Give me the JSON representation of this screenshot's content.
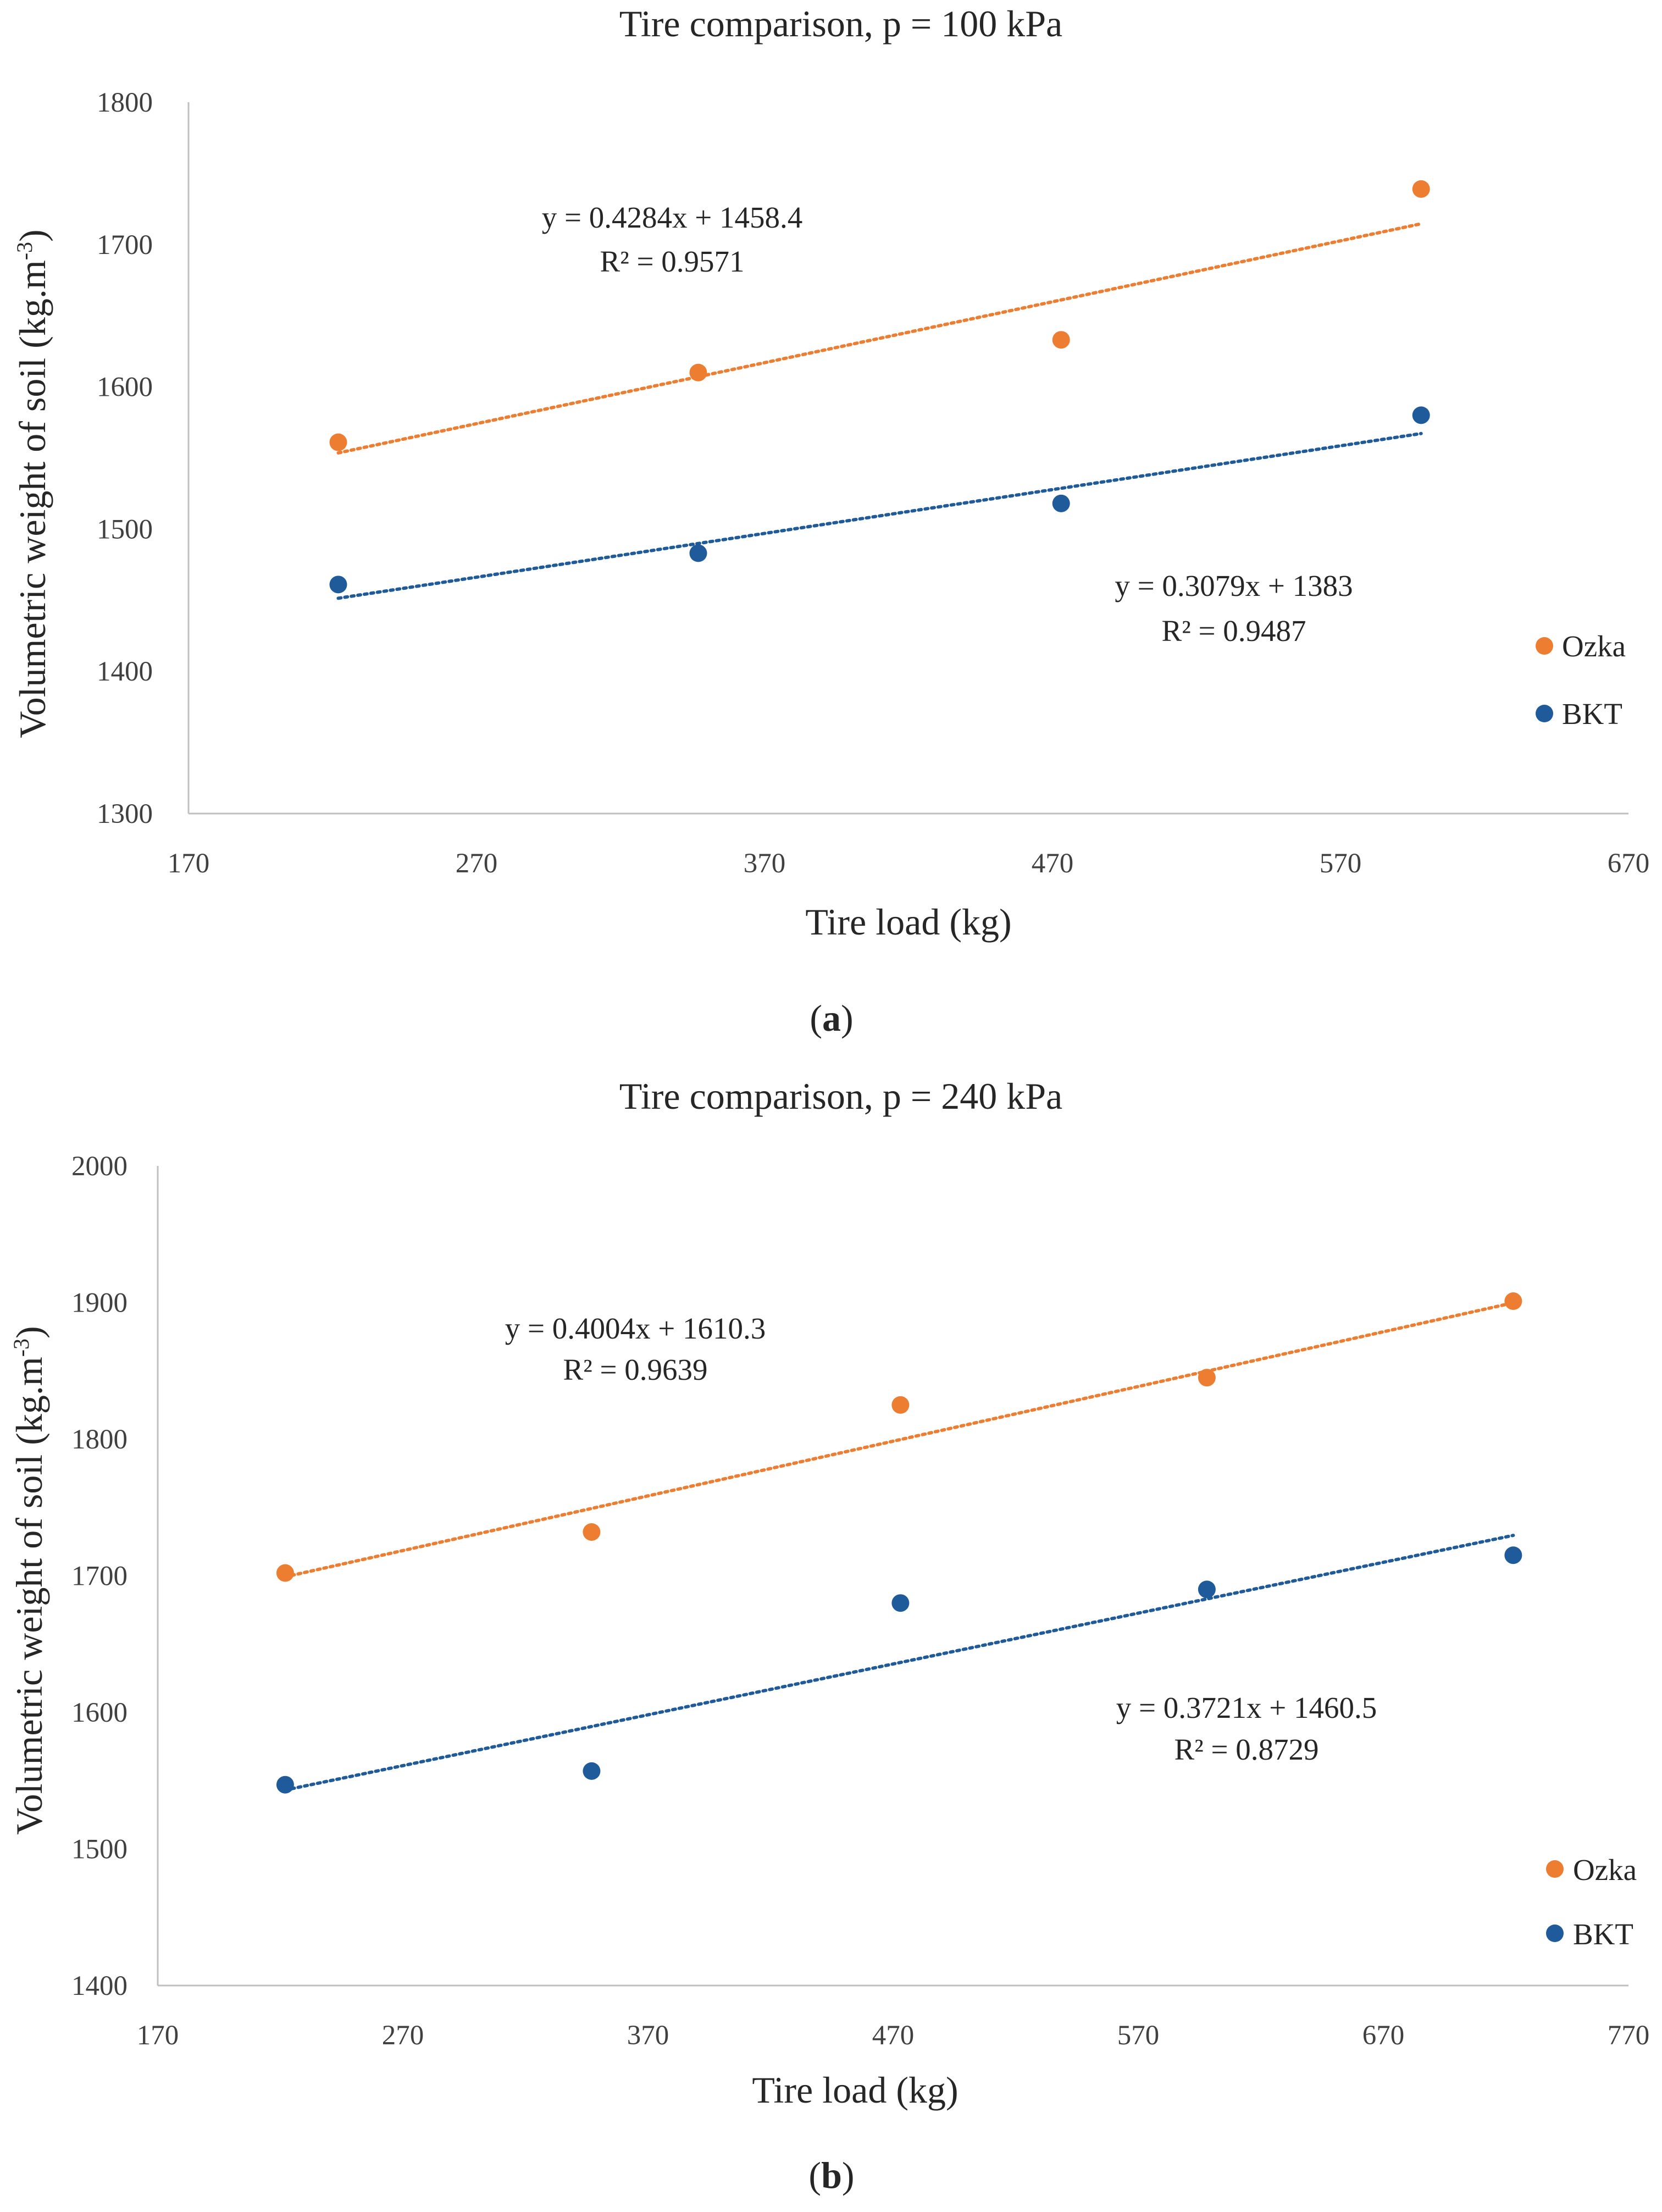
{
  "chart_data": [
    {
      "type": "scatter",
      "title": "Tire comparison, p = 100 kPa",
      "xlabel": "Tire load (kg)",
      "ylabel_main": "Volumetric weight of soil (kg.m",
      "ylabel_sup": "-3",
      "ylabel_close": ")",
      "xlim": [
        170,
        670
      ],
      "ylim": [
        1300,
        1800
      ],
      "xticks": [
        "170",
        "270",
        "370",
        "470",
        "570",
        "670"
      ],
      "yticks": [
        "1300",
        "1400",
        "1500",
        "1600",
        "1700",
        "1800"
      ],
      "series": [
        {
          "name": "Ozka",
          "color": "#ed7d31",
          "x": [
            222,
            347,
            473,
            598
          ],
          "y": [
            1561,
            1610,
            1633,
            1739
          ],
          "trendline": {
            "slope": 0.4284,
            "intercept": 1458.4
          },
          "equation": "y = 0.4284x + 1458.4",
          "r2": "R² = 0.9571"
        },
        {
          "name": "BKT",
          "color": "#1f5a9a",
          "x": [
            222,
            347,
            473,
            598
          ],
          "y": [
            1461,
            1483,
            1518,
            1580
          ],
          "trendline": {
            "slope": 0.3079,
            "intercept": 1383
          },
          "equation": "y = 0.3079x + 1383",
          "r2": "R² = 0.9487"
        }
      ],
      "legend": [
        "Ozka",
        "BKT"
      ],
      "legend_position": "right",
      "panel_label": "a"
    },
    {
      "type": "scatter",
      "title": "Tire comparison, p = 240 kPa",
      "xlabel": "Tire load (kg)",
      "ylabel_main": "Volumetric weight of soil (kg.m",
      "ylabel_sup": "-3",
      "ylabel_close": ")",
      "xlim": [
        170,
        770
      ],
      "ylim": [
        1400,
        2000
      ],
      "xticks": [
        "170",
        "270",
        "370",
        "470",
        "570",
        "670",
        "770"
      ],
      "yticks": [
        "1400",
        "1500",
        "1600",
        "1700",
        "1800",
        "1900",
        "2000"
      ],
      "series": [
        {
          "name": "Ozka",
          "color": "#ed7d31",
          "x": [
            222,
            347,
            473,
            598,
            723
          ],
          "y": [
            1702,
            1732,
            1825,
            1845,
            1901
          ],
          "trendline": {
            "slope": 0.4004,
            "intercept": 1610.3
          },
          "equation": "y = 0.4004x + 1610.3",
          "r2": "R² = 0.9639"
        },
        {
          "name": "BKT",
          "color": "#1f5a9a",
          "x": [
            222,
            347,
            473,
            598,
            723
          ],
          "y": [
            1547,
            1557,
            1680,
            1690,
            1715
          ],
          "trendline": {
            "slope": 0.3721,
            "intercept": 1460.5
          },
          "equation": "y = 0.3721x + 1460.5",
          "r2": "R² = 0.8729"
        }
      ],
      "legend": [
        "Ozka",
        "BKT"
      ],
      "legend_position": "right",
      "panel_label": "b"
    }
  ]
}
